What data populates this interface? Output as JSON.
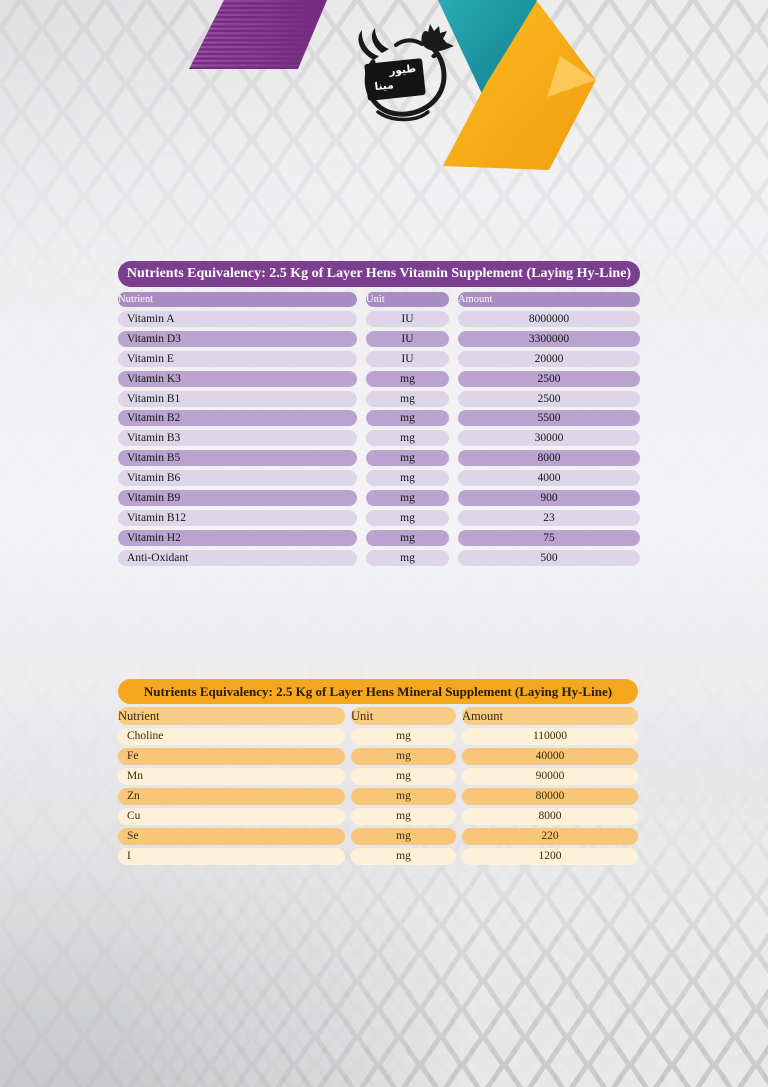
{
  "brand": {
    "logo_text_top": "طیور",
    "logo_text_bottom": "مینا"
  },
  "colors": {
    "purple_title": "#7C3E8E",
    "purple_header": "#A98CC1",
    "purple_row_dark": "#BAA3CE",
    "purple_row_light": "#DFD5E9",
    "orange_title": "#F5A71E",
    "orange_header": "#F9CC83",
    "orange_row_dark": "#F8C678",
    "orange_row_light": "#FDF2D9",
    "teal_accent": "#1795A4",
    "purple_accent": "#7B2C80",
    "orange_accent": "#F5A713"
  },
  "vitamin_table": {
    "title": "Nutrients Equivalency: 2.5 Kg of Layer Hens Vitamin Supplement (Laying Hy-Line)",
    "columns": [
      "Nutrient",
      "Unit",
      "Amount"
    ],
    "rows": [
      [
        "Vitamin A",
        "IU",
        "8000000"
      ],
      [
        "Vitamin D3",
        "IU",
        "3300000"
      ],
      [
        "Vitamin E",
        "IU",
        "20000"
      ],
      [
        "Vitamin K3",
        "mg",
        "2500"
      ],
      [
        "Vitamin B1",
        "mg",
        "2500"
      ],
      [
        "Vitamin B2",
        "mg",
        "5500"
      ],
      [
        "Vitamin B3",
        "mg",
        "30000"
      ],
      [
        "Vitamin B5",
        "mg",
        "8000"
      ],
      [
        "Vitamin B6",
        "mg",
        "4000"
      ],
      [
        "Vitamin B9",
        "mg",
        "900"
      ],
      [
        "Vitamin B12",
        "mg",
        "23"
      ],
      [
        "Vitamin H2",
        "mg",
        "75"
      ],
      [
        "Anti-Oxidant",
        "mg",
        "500"
      ]
    ]
  },
  "mineral_table": {
    "title": "Nutrients Equivalency: 2.5 Kg of Layer Hens Mineral Supplement (Laying Hy-Line)",
    "columns": [
      "Nutrient",
      "Unit",
      "Amount"
    ],
    "rows": [
      [
        "Choline",
        "mg",
        "110000"
      ],
      [
        "Fe",
        "mg",
        "40000"
      ],
      [
        "Mn",
        "mg",
        "90000"
      ],
      [
        "Zn",
        "mg",
        "80000"
      ],
      [
        "Cu",
        "mg",
        "8000"
      ],
      [
        "Se",
        "mg",
        "220"
      ],
      [
        "I",
        "mg",
        "1200"
      ]
    ]
  }
}
